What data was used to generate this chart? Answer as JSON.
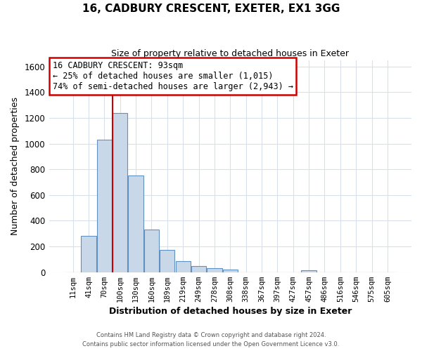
{
  "title": "16, CADBURY CRESCENT, EXETER, EX1 3GG",
  "subtitle": "Size of property relative to detached houses in Exeter",
  "xlabel": "Distribution of detached houses by size in Exeter",
  "ylabel": "Number of detached properties",
  "bar_labels": [
    "11sqm",
    "41sqm",
    "70sqm",
    "100sqm",
    "130sqm",
    "160sqm",
    "189sqm",
    "219sqm",
    "249sqm",
    "278sqm",
    "308sqm",
    "338sqm",
    "367sqm",
    "397sqm",
    "427sqm",
    "457sqm",
    "486sqm",
    "516sqm",
    "546sqm",
    "575sqm",
    "605sqm"
  ],
  "bar_heights": [
    0,
    280,
    1030,
    1240,
    750,
    330,
    175,
    85,
    50,
    30,
    20,
    0,
    0,
    0,
    0,
    15,
    0,
    0,
    0,
    0,
    0
  ],
  "bar_color": "#c8d8e8",
  "bar_edge_color": "#6090c0",
  "vline_color": "#cc0000",
  "ylim": [
    0,
    1650
  ],
  "yticks": [
    0,
    200,
    400,
    600,
    800,
    1000,
    1200,
    1400,
    1600
  ],
  "annotation_title": "16 CADBURY CRESCENT: 93sqm",
  "annotation_line1": "← 25% of detached houses are smaller (1,015)",
  "annotation_line2": "74% of semi-detached houses are larger (2,943) →",
  "footer_line1": "Contains HM Land Registry data © Crown copyright and database right 2024.",
  "footer_line2": "Contains public sector information licensed under the Open Government Licence v3.0.",
  "background_color": "#ffffff",
  "plot_bg_color": "#ffffff",
  "grid_color": "#d8e0ea"
}
